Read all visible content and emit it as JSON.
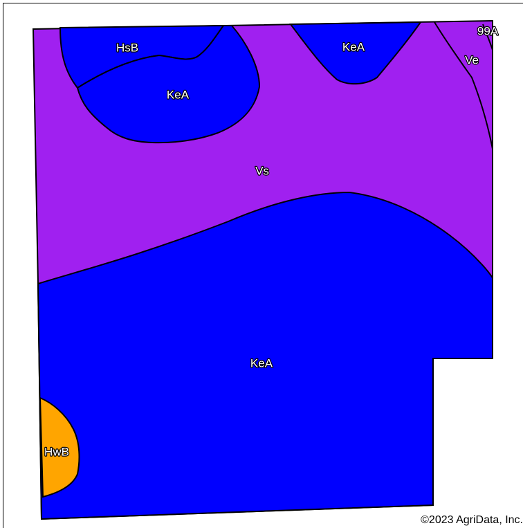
{
  "map": {
    "colors": {
      "Vs": "#a020f0",
      "KeA": "#0000ff",
      "HsB": "#0000ff",
      "HwB": "#ffa500",
      "Ve": "#a020f0",
      "99A": "#a020f0",
      "outline": "#000000"
    },
    "labels": {
      "hsb": "HsB",
      "kea_top_left": "KeA",
      "kea_top_mid": "KeA",
      "ve": "Ve",
      "ninety_nine_a": "99A",
      "vs": "Vs",
      "kea_main": "KeA",
      "hwb": "HwB"
    }
  },
  "copyright": "©2023 AgriData, Inc."
}
